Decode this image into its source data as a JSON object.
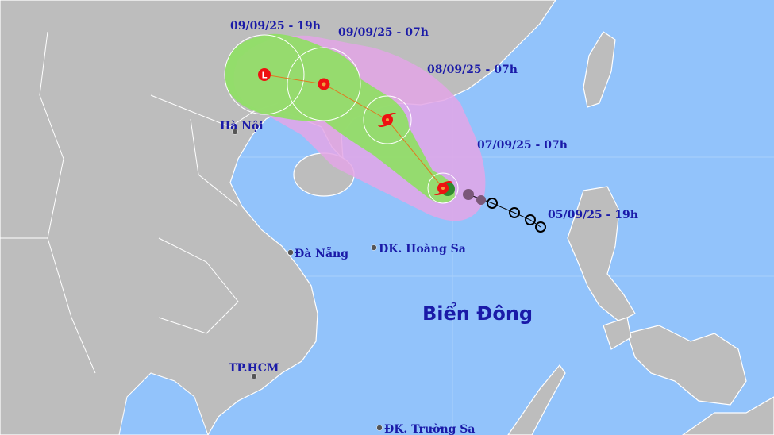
{
  "map": {
    "sea_label": "Biển Đông",
    "cities": [
      {
        "name": "Hà Nội"
      },
      {
        "name": "Đà Nẵng"
      },
      {
        "name": "ĐK. Hoàng Sa"
      },
      {
        "name": "TP.HCM"
      },
      {
        "name": "ĐK. Trường Sa"
      }
    ],
    "track_labels": [
      "09/09/25 - 19h",
      "09/09/25 - 07h",
      "08/09/25 - 07h",
      "07/09/25 - 07h",
      "05/09/25 - 19h"
    ],
    "forecast_points": [
      {
        "time": "09/09/25 - 19h",
        "symbol": "L",
        "type": "low-pressure"
      },
      {
        "time": "09/09/25 - 07h",
        "type": "tropical-depression"
      },
      {
        "time": "08/09/25 - 07h",
        "type": "storm"
      },
      {
        "time": "07/09/25 - 07h",
        "type": "storm-current"
      }
    ],
    "colors": {
      "sea": "#92c3fb",
      "land": "#bdbdbd",
      "risk_cone": "#e3a6e6",
      "danger_zone": "#8fe064",
      "forecast_marker": "#ee1111",
      "track_line": "#e07a20",
      "past_storm": "#7a5878",
      "label": "#1a1aa8"
    }
  }
}
